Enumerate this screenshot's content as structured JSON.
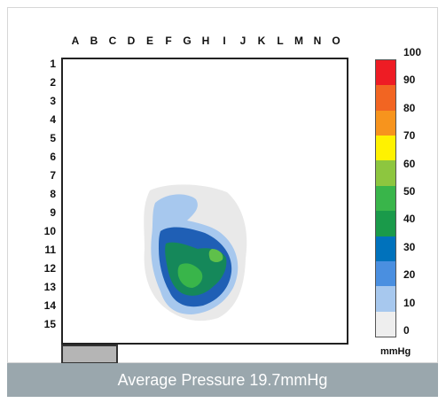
{
  "grid": {
    "columns": [
      "A",
      "B",
      "C",
      "D",
      "E",
      "F",
      "G",
      "H",
      "I",
      "J",
      "K",
      "L",
      "M",
      "N",
      "O"
    ],
    "rows": [
      "1",
      "2",
      "3",
      "4",
      "5",
      "6",
      "7",
      "8",
      "9",
      "10",
      "11",
      "12",
      "13",
      "14",
      "15"
    ]
  },
  "scale": {
    "ticks": [
      "100",
      "90",
      "80",
      "70",
      "60",
      "50",
      "40",
      "30",
      "20",
      "10",
      "0"
    ],
    "unit": "mmHg",
    "colors": [
      "#ee1c24",
      "#f26522",
      "#f7941d",
      "#fff200",
      "#8dc63f",
      "#39b54a",
      "#1a9a4a",
      "#0072bc",
      "#4a8fe0",
      "#a7c8ee",
      "#eeeeee"
    ]
  },
  "caption": "Average Pressure 19.7mmHg"
}
